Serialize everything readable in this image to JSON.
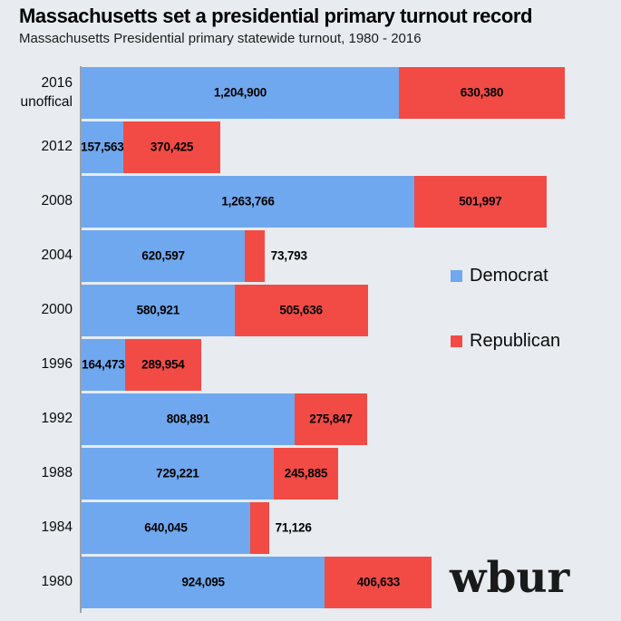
{
  "header": {
    "title": "Massachusetts set a presidential primary turnout record",
    "subtitle": "Massachusetts Presidential primary statewide turnout, 1980 - 2016"
  },
  "logo": {
    "text": "wbur"
  },
  "chart_data": {
    "type": "bar",
    "orientation": "horizontal",
    "stacked": true,
    "title": "Massachusetts set a presidential primary turnout record",
    "subtitle": "Massachusetts Presidential primary statewide turnout, 1980 - 2016",
    "grid": false,
    "axis_tick_labels": "none shown",
    "legend_position": "middle-right",
    "background_color": "#E8ECF0",
    "axis_line_color": "#9CA1A7",
    "xmax": 1835280,
    "series": [
      {
        "name": "Democrat",
        "color": "#6FA8EE"
      },
      {
        "name": "Republican",
        "color": "#F24B46"
      }
    ],
    "rows": [
      {
        "year": "2016",
        "sublabel": "unoffical",
        "democrat": 1204900,
        "republican": 630380,
        "democrat_label": "1,204,900",
        "republican_label": "630,380"
      },
      {
        "year": "2012",
        "sublabel": "",
        "democrat": 157563,
        "republican": 370425,
        "democrat_label": "157,563",
        "republican_label": "370,425"
      },
      {
        "year": "2008",
        "sublabel": "",
        "democrat": 1263766,
        "republican": 501997,
        "democrat_label": "1,263,766",
        "republican_label": "501,997"
      },
      {
        "year": "2004",
        "sublabel": "",
        "democrat": 620597,
        "republican": 73793,
        "democrat_label": "620,597",
        "republican_label": "73,793"
      },
      {
        "year": "2000",
        "sublabel": "",
        "democrat": 580921,
        "republican": 505636,
        "democrat_label": "580,921",
        "republican_label": "505,636"
      },
      {
        "year": "1996",
        "sublabel": "",
        "democrat": 164473,
        "republican": 289954,
        "democrat_label": "164,473",
        "republican_label": "289,954"
      },
      {
        "year": "1992",
        "sublabel": "",
        "democrat": 808891,
        "republican": 275847,
        "democrat_label": "808,891",
        "republican_label": "275,847"
      },
      {
        "year": "1988",
        "sublabel": "",
        "democrat": 729221,
        "republican": 245885,
        "democrat_label": "729,221",
        "republican_label": "245,885"
      },
      {
        "year": "1984",
        "sublabel": "",
        "democrat": 640045,
        "republican": 71126,
        "democrat_label": "640,045",
        "republican_label": "71,126"
      },
      {
        "year": "1980",
        "sublabel": "",
        "democrat": 924095,
        "republican": 406633,
        "democrat_label": "924,095",
        "republican_label": "406,633"
      }
    ]
  }
}
